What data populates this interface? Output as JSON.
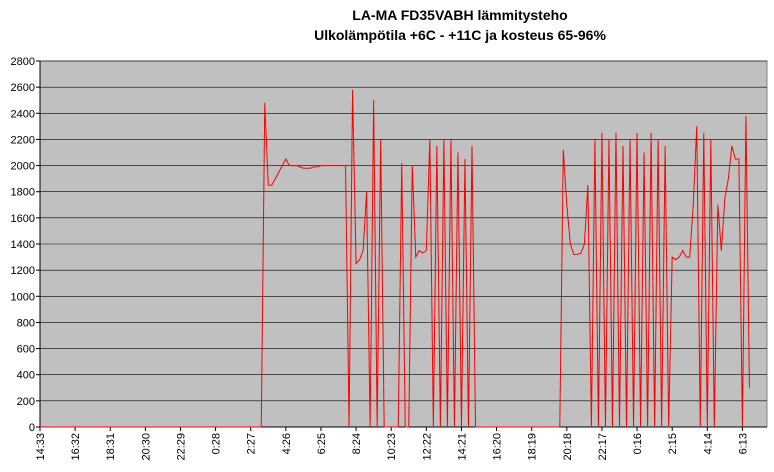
{
  "chart_data": {
    "type": "line",
    "title": "LA-MA FD35VABH lämmitysteho",
    "subtitle": "Ulkolämpötila  +6C - +11C ja kosteus 65-96%",
    "categories": [
      "14:33",
      null,
      null,
      null,
      null,
      null,
      null,
      null,
      null,
      null,
      "16:32",
      null,
      null,
      null,
      null,
      null,
      null,
      null,
      null,
      null,
      "18:31",
      null,
      null,
      null,
      null,
      null,
      null,
      null,
      null,
      null,
      "20:30",
      null,
      null,
      null,
      null,
      null,
      null,
      null,
      null,
      null,
      "22:29",
      null,
      null,
      null,
      null,
      null,
      null,
      null,
      null,
      null,
      "0:28",
      null,
      null,
      null,
      null,
      null,
      null,
      null,
      null,
      null,
      "2:27",
      null,
      null,
      null,
      null,
      null,
      null,
      null,
      null,
      null,
      "4:26",
      null,
      null,
      null,
      null,
      null,
      null,
      null,
      null,
      null,
      "6:25",
      null,
      null,
      null,
      null,
      null,
      null,
      null,
      null,
      null,
      "8:24",
      null,
      null,
      null,
      null,
      null,
      null,
      null,
      null,
      null,
      "10:23",
      null,
      null,
      null,
      null,
      null,
      null,
      null,
      null,
      null,
      "12:22",
      null,
      null,
      null,
      null,
      null,
      null,
      null,
      null,
      null,
      "14:21",
      null,
      null,
      null,
      null,
      null,
      null,
      null,
      null,
      null,
      "16:20",
      null,
      null,
      null,
      null,
      null,
      null,
      null,
      null,
      null,
      "18:19",
      null,
      null,
      null,
      null,
      null,
      null,
      null,
      null,
      null,
      "20:18",
      null,
      null,
      null,
      null,
      null,
      null,
      null,
      null,
      null,
      "22:17",
      null,
      null,
      null,
      null,
      null,
      null,
      null,
      null,
      null,
      "0:16",
      null,
      null,
      null,
      null,
      null,
      null,
      null,
      null,
      null,
      "2:15",
      null,
      null,
      null,
      null,
      null,
      null,
      null,
      null,
      null,
      "4:14",
      null,
      null,
      null,
      null,
      null,
      null,
      null,
      null,
      null,
      "6:13",
      null,
      null
    ],
    "values": [
      0,
      0,
      0,
      0,
      0,
      0,
      0,
      0,
      0,
      0,
      0,
      0,
      0,
      0,
      0,
      0,
      0,
      0,
      0,
      0,
      0,
      0,
      0,
      0,
      0,
      0,
      0,
      0,
      0,
      0,
      0,
      0,
      0,
      0,
      0,
      0,
      0,
      0,
      0,
      0,
      0,
      0,
      0,
      0,
      0,
      0,
      0,
      0,
      0,
      0,
      0,
      0,
      0,
      0,
      0,
      0,
      0,
      0,
      0,
      0,
      0,
      0,
      0,
      0,
      2480,
      1850,
      1850,
      1900,
      1950,
      2000,
      2050,
      2000,
      2000,
      2000,
      1990,
      1980,
      1980,
      1980,
      1990,
      1990,
      2000,
      2000,
      2000,
      2000,
      2000,
      2000,
      2000,
      2000,
      0,
      2580,
      1250,
      1280,
      1350,
      1800,
      0,
      2500,
      0,
      2200,
      0,
      0,
      0,
      0,
      0,
      2020,
      0,
      0,
      2000,
      1300,
      1350,
      1330,
      1350,
      2200,
      0,
      2150,
      0,
      2200,
      0,
      2200,
      0,
      2100,
      0,
      2050,
      0,
      2150,
      0,
      0,
      0,
      0,
      0,
      0,
      0,
      0,
      0,
      0,
      0,
      0,
      0,
      0,
      0,
      0,
      0,
      0,
      0,
      0,
      0,
      0,
      0,
      0,
      0,
      2120,
      1700,
      1400,
      1320,
      1320,
      1330,
      1400,
      1850,
      0,
      2200,
      0,
      2250,
      0,
      2200,
      0,
      2250,
      0,
      2150,
      0,
      2200,
      0,
      2250,
      0,
      2100,
      0,
      2250,
      0,
      2200,
      0,
      2150,
      0,
      1300,
      1280,
      1300,
      1350,
      1300,
      1300,
      1700,
      2300,
      0,
      2250,
      0,
      2200,
      0,
      1700,
      1350,
      1750,
      1900,
      2150,
      2050,
      2050,
      0,
      2380,
      300
    ],
    "color": "#ff0000",
    "ylim": [
      0,
      2800
    ],
    "yticks": [
      0,
      200,
      400,
      600,
      800,
      1000,
      1200,
      1400,
      1600,
      1800,
      2000,
      2200,
      2400,
      2600,
      2800
    ],
    "grid": true
  }
}
